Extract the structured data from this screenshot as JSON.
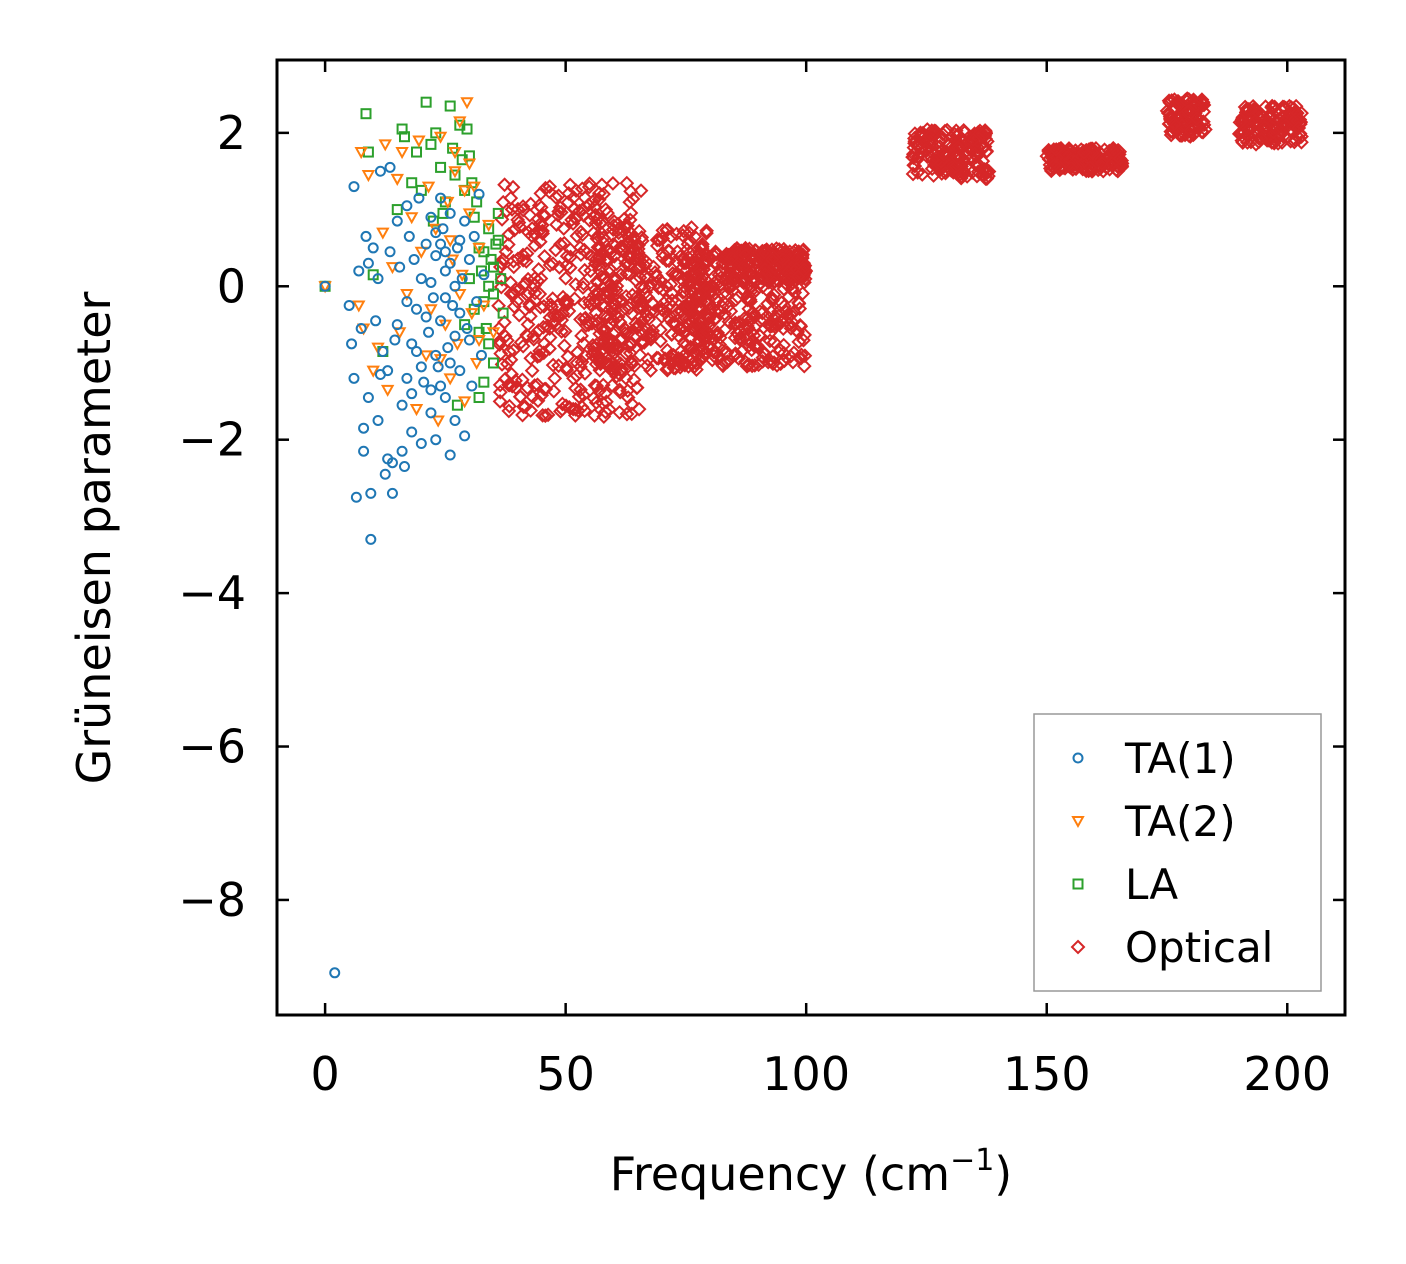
{
  "chart_data": {
    "type": "scatter",
    "xlabel": "Frequency (cm",
    "xlabel_sup": "−1",
    "xlabel_end": ")",
    "ylabel": "Grüneisen parameter",
    "xlim": [
      -10,
      212
    ],
    "ylim": [
      -9.5,
      2.95
    ],
    "xticks": [
      0,
      50,
      100,
      150,
      200
    ],
    "yticks": [
      2,
      0,
      -2,
      -4,
      -6,
      -8
    ],
    "xtick_labels": [
      "0",
      "50",
      "100",
      "150",
      "200"
    ],
    "ytick_labels": [
      "2",
      "0",
      "−2",
      "−4",
      "−6",
      "−8"
    ],
    "legend_position": "lower-right",
    "series": [
      {
        "name": "TA(1)",
        "marker": "circle",
        "color": "#1f77b4",
        "points": [
          [
            0,
            0
          ],
          [
            2,
            -8.95
          ],
          [
            5,
            -0.25
          ],
          [
            5.5,
            -0.75
          ],
          [
            6,
            1.3
          ],
          [
            6,
            -1.2
          ],
          [
            6.5,
            -2.75
          ],
          [
            7,
            0.2
          ],
          [
            7.5,
            -0.55
          ],
          [
            8,
            -1.85
          ],
          [
            8,
            -2.15
          ],
          [
            8.5,
            0.65
          ],
          [
            9,
            0.3
          ],
          [
            9,
            -1.45
          ],
          [
            9.5,
            -2.7
          ],
          [
            9.5,
            -3.3
          ],
          [
            10,
            0.5
          ],
          [
            10.5,
            -0.45
          ],
          [
            11,
            0.1
          ],
          [
            11,
            -1.75
          ],
          [
            11.5,
            1.5
          ],
          [
            11.5,
            -1.15
          ],
          [
            12,
            -0.85
          ],
          [
            12.5,
            -2.45
          ],
          [
            13,
            -1.1
          ],
          [
            13,
            -2.25
          ],
          [
            13.5,
            1.55
          ],
          [
            13.5,
            0.45
          ],
          [
            14,
            -2.7
          ],
          [
            14,
            -2.3
          ],
          [
            14.5,
            -0.7
          ],
          [
            15,
            0.85
          ],
          [
            15,
            -0.5
          ],
          [
            15.5,
            0.25
          ],
          [
            16,
            -1.55
          ],
          [
            16,
            -2.15
          ],
          [
            16.5,
            -2.35
          ],
          [
            17,
            1.05
          ],
          [
            17,
            -0.2
          ],
          [
            17.5,
            0.65
          ],
          [
            18,
            -1.4
          ],
          [
            18,
            -1.9
          ],
          [
            18.5,
            0.35
          ],
          [
            19,
            -0.85
          ],
          [
            19.5,
            1.15
          ],
          [
            20,
            0.1
          ],
          [
            20,
            -2.05
          ],
          [
            20.5,
            -1.25
          ],
          [
            21,
            0.55
          ],
          [
            21.5,
            -0.6
          ],
          [
            22,
            -1.65
          ],
          [
            22,
            0.9
          ],
          [
            22.5,
            -0.15
          ],
          [
            23,
            -2.0
          ],
          [
            23,
            0.4
          ],
          [
            23.5,
            -1.05
          ],
          [
            24,
            1.15
          ],
          [
            24,
            -0.45
          ],
          [
            24.5,
            0.75
          ],
          [
            25,
            -1.45
          ],
          [
            25,
            0.2
          ],
          [
            25.5,
            -0.8
          ],
          [
            26,
            -2.2
          ],
          [
            26,
            0.95
          ],
          [
            26.5,
            -0.25
          ],
          [
            27,
            -1.75
          ],
          [
            27.5,
            0.5
          ],
          [
            28,
            -1.1
          ],
          [
            28.5,
            0.1
          ],
          [
            29,
            -1.95
          ],
          [
            29,
            0.85
          ],
          [
            29.5,
            -0.55
          ],
          [
            30,
            0.35
          ],
          [
            30.5,
            -1.3
          ],
          [
            31,
            0.65
          ],
          [
            31.5,
            -0.2
          ],
          [
            32,
            1.2
          ],
          [
            32.5,
            -0.9
          ],
          [
            33,
            0.15
          ],
          [
            20,
            -1.05
          ],
          [
            21,
            -0.4
          ],
          [
            22,
            0.05
          ],
          [
            23,
            -0.9
          ],
          [
            24,
            -1.3
          ],
          [
            25,
            -0.15
          ],
          [
            26,
            0.3
          ],
          [
            27,
            -0.65
          ],
          [
            28,
            -0.35
          ],
          [
            19,
            -0.3
          ],
          [
            18,
            -0.75
          ],
          [
            17,
            -1.2
          ],
          [
            24,
            0.55
          ],
          [
            26,
            -1.0
          ],
          [
            28,
            0.6
          ],
          [
            30,
            -0.7
          ],
          [
            22,
            -1.35
          ],
          [
            23,
            0.7
          ],
          [
            25,
            0.45
          ],
          [
            27,
            0.0
          ]
        ]
      },
      {
        "name": "TA(2)",
        "marker": "triangle",
        "color": "#ff7f0e",
        "points": [
          [
            0,
            0
          ],
          [
            7,
            -0.25
          ],
          [
            7.5,
            1.75
          ],
          [
            8,
            -0.55
          ],
          [
            9,
            1.45
          ],
          [
            10,
            -1.1
          ],
          [
            11,
            -0.8
          ],
          [
            12,
            0.7
          ],
          [
            12.5,
            1.85
          ],
          [
            13,
            -1.35
          ],
          [
            14,
            0.25
          ],
          [
            15,
            1.4
          ],
          [
            15.5,
            -0.6
          ],
          [
            16,
            1.75
          ],
          [
            17,
            -0.1
          ],
          [
            18,
            0.9
          ],
          [
            19,
            -1.6
          ],
          [
            19.5,
            1.9
          ],
          [
            20,
            0.45
          ],
          [
            21,
            -0.9
          ],
          [
            21.5,
            1.3
          ],
          [
            22,
            -0.3
          ],
          [
            23,
            0.75
          ],
          [
            23.5,
            -1.75
          ],
          [
            24,
            1.95
          ],
          [
            25,
            -0.5
          ],
          [
            25.5,
            1.1
          ],
          [
            26,
            -1.2
          ],
          [
            26.5,
            0.35
          ],
          [
            27,
            1.5
          ],
          [
            27.5,
            -0.75
          ],
          [
            28,
            2.15
          ],
          [
            28.5,
            0.15
          ],
          [
            29,
            -1.5
          ],
          [
            29.5,
            2.4
          ],
          [
            30,
            0.95
          ],
          [
            30.5,
            -0.35
          ],
          [
            31,
            1.3
          ],
          [
            31.5,
            -1.0
          ],
          [
            32,
            0.5
          ],
          [
            33,
            -0.25
          ],
          [
            34,
            0.8
          ],
          [
            35,
            -0.6
          ],
          [
            24,
            -0.95
          ],
          [
            26,
            0.6
          ],
          [
            28,
            -0.1
          ],
          [
            30,
            1.6
          ],
          [
            32,
            -0.7
          ],
          [
            27,
            1.75
          ],
          [
            29,
            1.25
          ]
        ]
      },
      {
        "name": "LA",
        "marker": "square",
        "color": "#2ca02c",
        "points": [
          [
            0,
            0
          ],
          [
            8.5,
            2.25
          ],
          [
            9,
            1.75
          ],
          [
            10,
            0.15
          ],
          [
            12,
            -0.85
          ],
          [
            15,
            1.0
          ],
          [
            16,
            2.05
          ],
          [
            16.5,
            1.95
          ],
          [
            18,
            1.35
          ],
          [
            19,
            1.75
          ],
          [
            20,
            1.25
          ],
          [
            21,
            2.4
          ],
          [
            22,
            1.85
          ],
          [
            22.5,
            0.85
          ],
          [
            23,
            2.0
          ],
          [
            24,
            1.55
          ],
          [
            24.5,
            0.95
          ],
          [
            25,
            1.1
          ],
          [
            26,
            2.35
          ],
          [
            26.5,
            1.8
          ],
          [
            27,
            1.45
          ],
          [
            27.5,
            -1.55
          ],
          [
            28,
            2.1
          ],
          [
            28.5,
            1.65
          ],
          [
            29,
            1.25
          ],
          [
            29.5,
            2.05
          ],
          [
            30,
            1.7
          ],
          [
            30.5,
            1.35
          ],
          [
            31,
            0.9
          ],
          [
            31.5,
            1.1
          ],
          [
            32,
            0.5
          ],
          [
            32.5,
            0.2
          ],
          [
            33,
            -0.2
          ],
          [
            33.5,
            -0.55
          ],
          [
            34,
            0.75
          ],
          [
            34.5,
            0.35
          ],
          [
            35,
            -0.1
          ],
          [
            35.5,
            0.55
          ],
          [
            36,
            0.95
          ],
          [
            36.5,
            0.1
          ],
          [
            37,
            -0.35
          ],
          [
            34,
            -0.75
          ],
          [
            35,
            -1.0
          ],
          [
            33,
            -1.25
          ],
          [
            32,
            -1.45
          ],
          [
            36,
            0.6
          ],
          [
            35,
            0.25
          ],
          [
            34,
            0.0
          ],
          [
            33,
            0.45
          ],
          [
            32,
            -0.6
          ],
          [
            31,
            -0.3
          ],
          [
            30,
            0.1
          ],
          [
            29,
            -0.5
          ]
        ]
      },
      {
        "name": "Optical",
        "marker": "diamond",
        "color": "#d62728",
        "clusters": [
          {
            "x": [
              36,
              66
            ],
            "y": [
              -1.7,
              1.35
            ],
            "n": 420
          },
          {
            "x": [
              56,
              80
            ],
            "y": [
              -1.1,
              0.8
            ],
            "n": 300
          },
          {
            "x": [
              74,
              100
            ],
            "y": [
              -1.05,
              0.5
            ],
            "n": 360
          },
          {
            "x": [
              83,
              100
            ],
            "y": [
              0.05,
              0.48
            ],
            "n": 160
          },
          {
            "x": [
              122,
              138
            ],
            "y": [
              1.4,
              2.05
            ],
            "n": 180
          },
          {
            "x": [
              150,
              166
            ],
            "y": [
              1.5,
              1.8
            ],
            "n": 170
          },
          {
            "x": [
              175,
              183
            ],
            "y": [
              1.95,
              2.45
            ],
            "n": 110
          },
          {
            "x": [
              190,
              203
            ],
            "y": [
              1.85,
              2.35
            ],
            "n": 150
          }
        ]
      }
    ]
  }
}
